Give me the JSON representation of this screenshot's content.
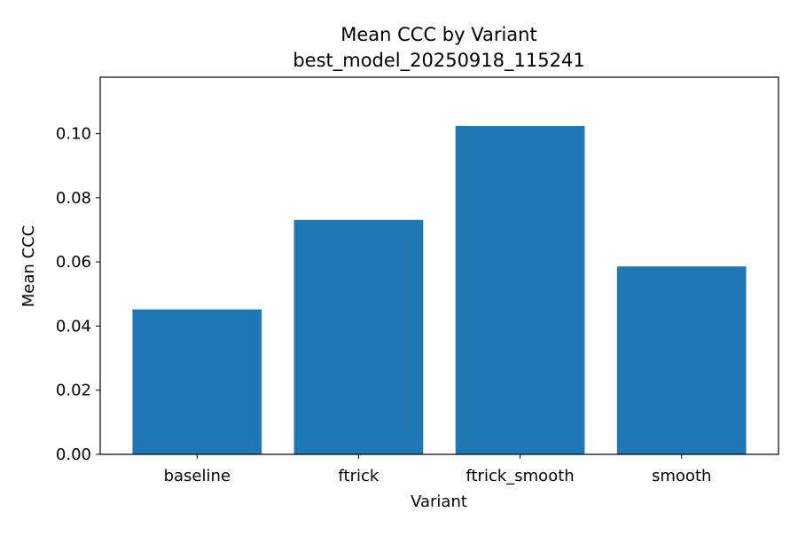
{
  "chart_data": {
    "type": "bar",
    "title": "Mean CCC by Variant",
    "subtitle": "best_model_20250918_115241",
    "xlabel": "Variant",
    "ylabel": "Mean CCC",
    "categories": [
      "baseline",
      "ftrick",
      "ftrick_smooth",
      "smooth"
    ],
    "values": [
      0.0452,
      0.0731,
      0.1024,
      0.0586
    ],
    "ylim": [
      0,
      0.1176
    ],
    "yticks": [
      0.0,
      0.02,
      0.04,
      0.06,
      0.08,
      0.1
    ],
    "ytick_labels": [
      "0.00",
      "0.02",
      "0.04",
      "0.06",
      "0.08",
      "0.10"
    ],
    "bar_color": "#1f77b4",
    "grid": false,
    "legend": "none"
  }
}
